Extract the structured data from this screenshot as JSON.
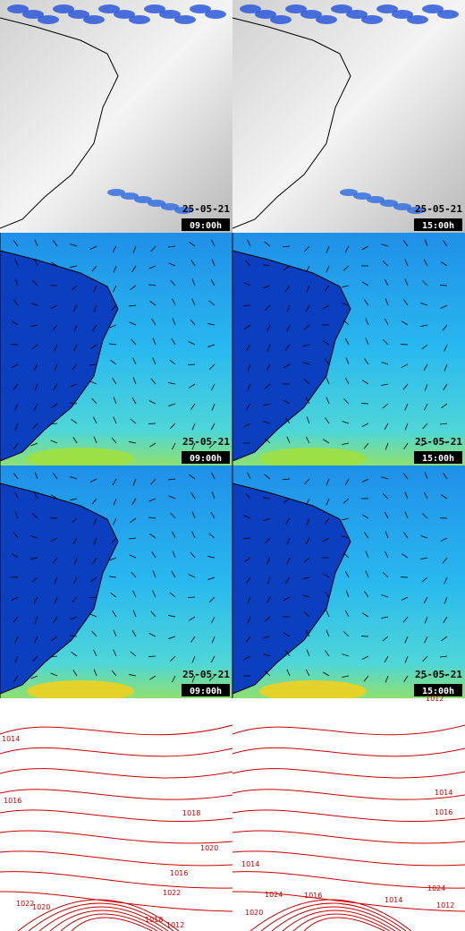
{
  "panels": [
    {
      "date": "25-05-21",
      "time": "09:00h"
    },
    {
      "date": "25-05-21",
      "time": "15:00h"
    },
    {
      "date": "25-05-21",
      "time": "09:00h"
    },
    {
      "date": "25-05-21",
      "time": "15:00h"
    },
    {
      "date": "25-05-21",
      "time": "09:00h"
    },
    {
      "date": "25-05-21",
      "time": "15:00h"
    }
  ],
  "isobar_labels_left": [
    "1014",
    "1016",
    "1018",
    "1020",
    "1022",
    "1016",
    "1018",
    "1020",
    "1022",
    "1012"
  ],
  "isobar_labels_right": [
    "1012",
    "1014",
    "1016",
    "1014",
    "1016",
    "1014",
    "1012",
    "1020",
    "1024",
    "1024"
  ]
}
